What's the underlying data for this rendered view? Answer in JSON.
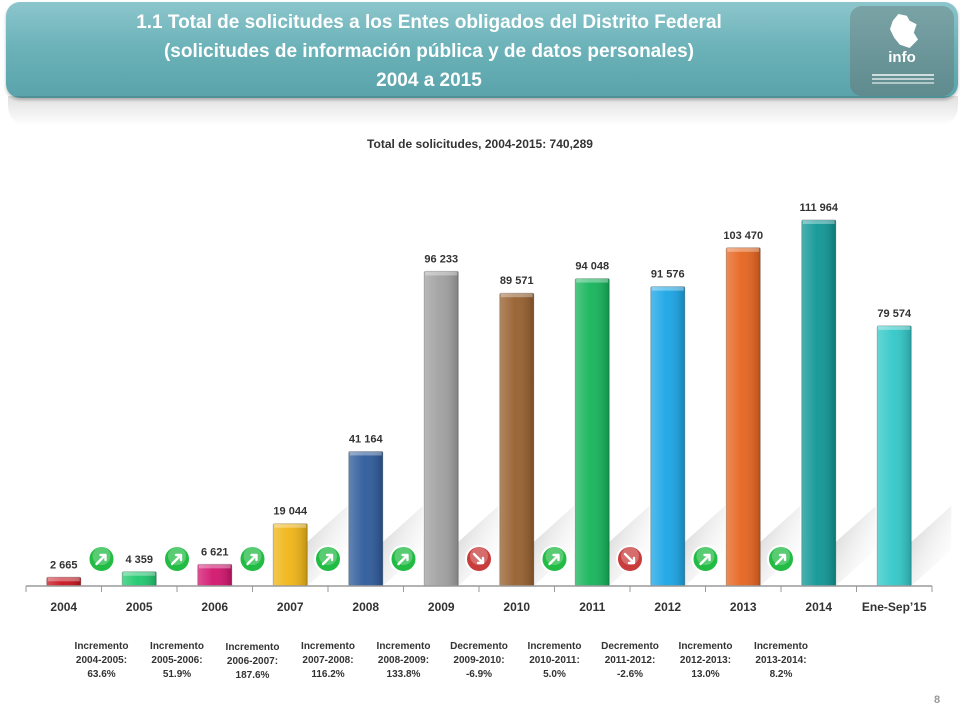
{
  "header": {
    "title_line1": "1.1 Total de solicitudes a los Entes obligados del Distrito Federal",
    "title_line2": "(solicitudes de información pública y de datos personales)",
    "title_line3": "2004 a 2015",
    "logo_text": "info"
  },
  "chart_data": {
    "type": "bar",
    "title": "Total de solicitudes, 2004-2015: 740,289",
    "categories": [
      "2004",
      "2005",
      "2006",
      "2007",
      "2008",
      "2009",
      "2010",
      "2011",
      "2012",
      "2013",
      "2014",
      "Ene-Sep’15"
    ],
    "values": [
      2665,
      4359,
      6621,
      19044,
      41164,
      96233,
      89571,
      94048,
      91576,
      103470,
      111964,
      79574
    ],
    "value_labels": [
      "2 665",
      "4 359",
      "6 621",
      "19 044",
      "41 164",
      "96 233",
      "89 571",
      "94 048",
      "91 576",
      "103 470",
      "111 964",
      "79 574"
    ],
    "colors": [
      "#c8141e",
      "#1ec86e",
      "#d2146e",
      "#f0b414",
      "#2d5a9b",
      "#a0a0a0",
      "#965f2d",
      "#14b45a",
      "#19a5e6",
      "#e6641e",
      "#0f9696",
      "#32c8c8"
    ],
    "ylim": [
      0,
      120000
    ],
    "xlabel": "",
    "ylabel": "",
    "grid": false,
    "changes": [
      {
        "kind": "up",
        "line1": "Incremento",
        "line2": "2004-2005:",
        "line3": "63.6%"
      },
      {
        "kind": "up",
        "line1": "Incremento",
        "line2": "2005-2006:",
        "line3": "51.9%"
      },
      {
        "kind": "up",
        "line1": "Incremento",
        "line2": "2006-2007:",
        "line3": "187.6%"
      },
      {
        "kind": "up",
        "line1": "Incremento",
        "line2": "2007-2008:",
        "line3": "116.2%"
      },
      {
        "kind": "up",
        "line1": "Incremento",
        "line2": "2008-2009:",
        "line3": "133.8%"
      },
      {
        "kind": "down",
        "line1": "Decremento",
        "line2": "2009-2010:",
        "line3": "-6.9%"
      },
      {
        "kind": "up",
        "line1": "Incremento",
        "line2": "2010-2011:",
        "line3": "5.0%"
      },
      {
        "kind": "down",
        "line1": "Decremento",
        "line2": "2011-2012:",
        "line3": "-2.6%"
      },
      {
        "kind": "up",
        "line1": "Incremento",
        "line2": "2012-2013:",
        "line3": "13.0%"
      },
      {
        "kind": "up",
        "line1": "Incremento",
        "line2": "2013-2014:",
        "line3": "8.2%"
      }
    ],
    "arrow_colors": {
      "up": "#22bb44",
      "down": "#c83c3c"
    }
  },
  "page": {
    "number": "8"
  }
}
